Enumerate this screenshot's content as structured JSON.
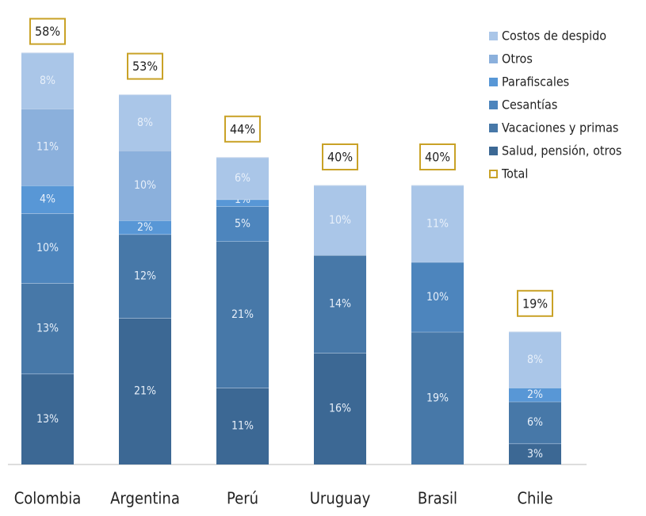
{
  "chart_data": {
    "type": "stacked_bar",
    "categories": [
      "Colombia",
      "Argentina",
      "Perú",
      "Uruguay",
      "Brasil",
      "Chile"
    ],
    "series": [
      {
        "name": "Salud, pensión, otros",
        "color": "#3c6894",
        "values": [
          13,
          21,
          11,
          16,
          null,
          3
        ],
        "value_labels": [
          "13%",
          "21%",
          "11%",
          "16%",
          null,
          "3%"
        ]
      },
      {
        "name": "Vacaciones y primas",
        "color": "#4778a8",
        "values": [
          13,
          12,
          21,
          14,
          19,
          6
        ],
        "value_labels": [
          "13%",
          "12%",
          "21%",
          "14%",
          "19%",
          "6%"
        ]
      },
      {
        "name": "Cesantías",
        "color": "#4d85bd",
        "values": [
          10,
          null,
          5,
          0,
          10,
          null
        ],
        "value_labels": [
          "10%",
          null,
          "5%",
          "0%",
          "10%",
          null
        ]
      },
      {
        "name": "Parafiscales",
        "color": "#5897d6",
        "values": [
          4,
          2,
          1,
          null,
          null,
          2
        ],
        "value_labels": [
          "4%",
          "2%",
          "1%",
          null,
          null,
          "2%"
        ]
      },
      {
        "name": "Otros",
        "color": "#8bb0dc",
        "values": [
          11,
          10,
          null,
          null,
          null,
          null
        ],
        "value_labels": [
          "11%",
          "10%",
          null,
          null,
          null,
          null
        ]
      },
      {
        "name": "Costos de despido",
        "color": "#aac6e8",
        "values": [
          8,
          8,
          6,
          10,
          11,
          8
        ],
        "value_labels": [
          "8%",
          "8%",
          "6%",
          "10%",
          "11%",
          "8%"
        ]
      }
    ],
    "total": {
      "name": "Total",
      "color": "#c9a227",
      "values": [
        58,
        53,
        44,
        40,
        40,
        19
      ],
      "value_labels": [
        "58%",
        "53%",
        "44%",
        "40%",
        "40%",
        "19%"
      ]
    }
  }
}
